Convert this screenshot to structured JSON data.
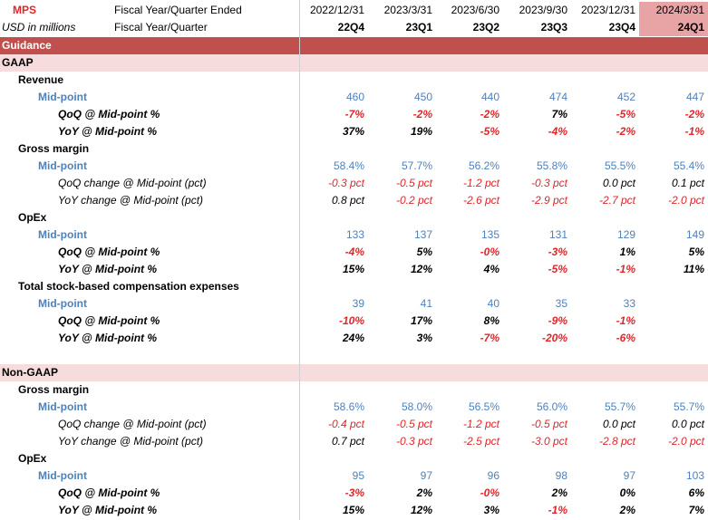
{
  "header": {
    "ticker": "MPS",
    "units": "USD in millions",
    "row1_label": "Fiscal Year/Quarter Ended",
    "row2_label": "Fiscal Year/Quarter",
    "dates": [
      "2022/12/31",
      "2023/3/31",
      "2023/6/30",
      "2023/9/30",
      "2023/12/31",
      "2024/3/31"
    ],
    "quarters": [
      "22Q4",
      "23Q1",
      "23Q2",
      "23Q3",
      "23Q4",
      "24Q1"
    ]
  },
  "colors": {
    "highlight": "#e8a3a5",
    "guidance_band": "#c0504d",
    "section_band": "#f6dcdc",
    "negative": "#e0262a",
    "midpoint": "#4f81bd"
  },
  "sections": {
    "guidance": "Guidance",
    "gaap": "GAAP",
    "nongaap": "Non-GAAP"
  },
  "rows": [
    {
      "kind": "sub",
      "label": "Revenue"
    },
    {
      "kind": "mid",
      "label": "Mid-point",
      "values": [
        "460",
        "450",
        "440",
        "474",
        "452",
        "447"
      ]
    },
    {
      "kind": "pct",
      "label": "QoQ @ Mid-point %",
      "values": [
        "-7%",
        "-2%",
        "-2%",
        "7%",
        "-5%",
        "-2%"
      ]
    },
    {
      "kind": "pct",
      "label": "YoY @ Mid-point %",
      "values": [
        "37%",
        "19%",
        "-5%",
        "-4%",
        "-2%",
        "-1%"
      ]
    },
    {
      "kind": "sub",
      "label": "Gross margin"
    },
    {
      "kind": "mid",
      "label": "Mid-point",
      "values": [
        "58.4%",
        "57.7%",
        "56.2%",
        "55.8%",
        "55.5%",
        "55.4%"
      ]
    },
    {
      "kind": "chg",
      "label": "QoQ change @ Mid-point (pct)",
      "values": [
        "-0.3 pct",
        "-0.5 pct",
        "-1.2 pct",
        "-0.3 pct",
        "0.0 pct",
        "0.1 pct"
      ]
    },
    {
      "kind": "chg",
      "label": "YoY change @ Mid-point (pct)",
      "values": [
        "0.8 pct",
        "-0.2 pct",
        "-2.6 pct",
        "-2.9 pct",
        "-2.7 pct",
        "-2.0 pct"
      ]
    },
    {
      "kind": "sub",
      "label": "OpEx"
    },
    {
      "kind": "mid",
      "label": "Mid-point",
      "values": [
        "133",
        "137",
        "135",
        "131",
        "129",
        "149"
      ]
    },
    {
      "kind": "pct",
      "label": "QoQ @ Mid-point %",
      "values": [
        "-4%",
        "5%",
        "-0%",
        "-3%",
        "1%",
        "5%"
      ]
    },
    {
      "kind": "pct",
      "label": "YoY @ Mid-point %",
      "values": [
        "15%",
        "12%",
        "4%",
        "-5%",
        "-1%",
        "11%"
      ]
    },
    {
      "kind": "sub",
      "label": "Total stock-based compensation expenses"
    },
    {
      "kind": "mid",
      "label": "Mid-point",
      "values": [
        "39",
        "41",
        "40",
        "35",
        "33",
        ""
      ]
    },
    {
      "kind": "pct",
      "label": "QoQ @ Mid-point %",
      "values": [
        "-10%",
        "17%",
        "8%",
        "-9%",
        "-1%",
        ""
      ]
    },
    {
      "kind": "pct",
      "label": "YoY @ Mid-point %",
      "values": [
        "24%",
        "3%",
        "-7%",
        "-20%",
        "-6%",
        ""
      ]
    },
    {
      "kind": "blank",
      "label": ""
    },
    {
      "kind": "section",
      "label": "Non-GAAP"
    },
    {
      "kind": "sub",
      "label": "Gross margin"
    },
    {
      "kind": "mid",
      "label": "Mid-point",
      "values": [
        "58.6%",
        "58.0%",
        "56.5%",
        "56.0%",
        "55.7%",
        "55.7%"
      ]
    },
    {
      "kind": "chg",
      "label": "QoQ change @ Mid-point (pct)",
      "values": [
        "-0.4 pct",
        "-0.5 pct",
        "-1.2 pct",
        "-0.5 pct",
        "0.0 pct",
        "0.0 pct"
      ]
    },
    {
      "kind": "chg",
      "label": "YoY change @ Mid-point (pct)",
      "values": [
        "0.7 pct",
        "-0.3 pct",
        "-2.5 pct",
        "-3.0 pct",
        "-2.8 pct",
        "-2.0 pct"
      ]
    },
    {
      "kind": "sub",
      "label": "OpEx"
    },
    {
      "kind": "mid",
      "label": "Mid-point",
      "values": [
        "95",
        "97",
        "96",
        "98",
        "97",
        "103"
      ]
    },
    {
      "kind": "pct",
      "label": "QoQ @ Mid-point %",
      "values": [
        "-3%",
        "2%",
        "-0%",
        "2%",
        "0%",
        "6%"
      ]
    },
    {
      "kind": "pct",
      "label": "YoY @ Mid-point %",
      "values": [
        "15%",
        "12%",
        "3%",
        "-1%",
        "2%",
        "7%"
      ]
    }
  ]
}
